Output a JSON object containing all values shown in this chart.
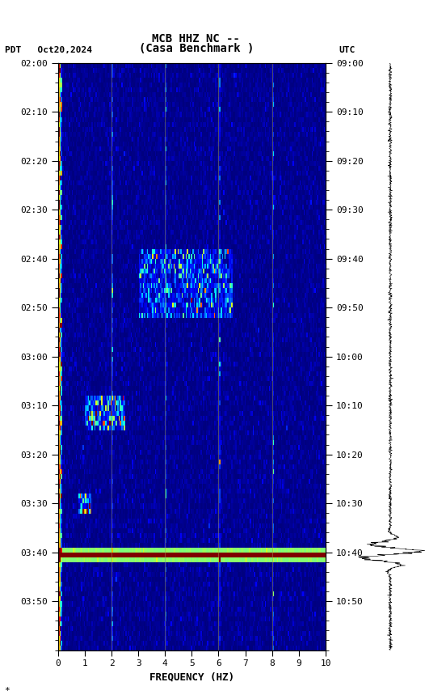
{
  "title_line1": "MCB HHZ NC --",
  "title_line2": "(Casa Benchmark )",
  "left_label": "PDT   Oct20,2024",
  "right_label": "UTC",
  "xlabel": "FREQUENCY (HZ)",
  "freq_min": 0,
  "freq_max": 10,
  "pdt_ticks": [
    "02:00",
    "02:10",
    "02:20",
    "02:30",
    "02:40",
    "02:50",
    "03:00",
    "03:10",
    "03:20",
    "03:30",
    "03:40",
    "03:50"
  ],
  "utc_ticks": [
    "09:00",
    "09:10",
    "09:20",
    "09:30",
    "09:40",
    "09:50",
    "10:00",
    "10:10",
    "10:20",
    "10:30",
    "10:40",
    "10:50"
  ],
  "tick_positions": [
    0,
    10,
    20,
    30,
    40,
    50,
    60,
    70,
    80,
    90,
    100,
    110
  ],
  "n_time": 120,
  "n_freq": 200,
  "earthquake_time_row": 100,
  "fig_width": 5.52,
  "fig_height": 8.64
}
